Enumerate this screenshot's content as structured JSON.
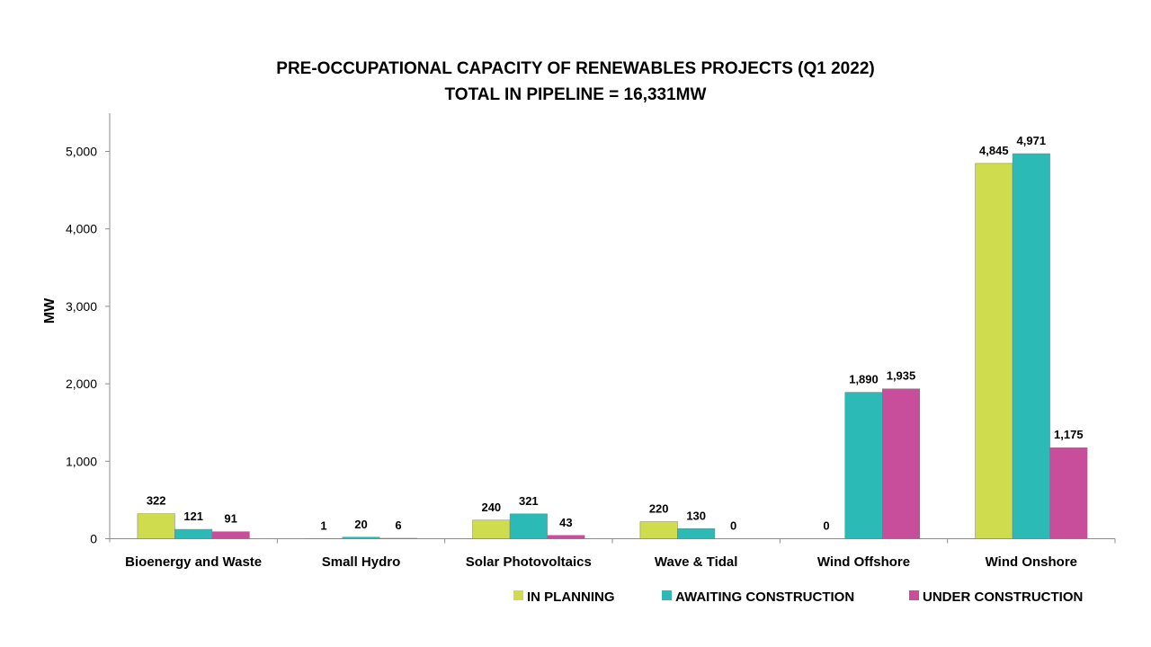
{
  "chart_data": {
    "type": "bar",
    "title": "PRE-OCCUPATIONAL CAPACITY OF RENEWABLES PROJECTS (Q1 2022)",
    "subtitle": "TOTAL IN PIPELINE = 16,331MW",
    "xlabel": "",
    "ylabel": "MW",
    "ylim": [
      0,
      5500
    ],
    "yticks": [
      0,
      1000,
      2000,
      3000,
      4000,
      5000
    ],
    "ytick_labels": [
      "0",
      "1,000",
      "2,000",
      "3,000",
      "4,000",
      "5,000"
    ],
    "categories": [
      "Bioenergy and Waste",
      "Small Hydro",
      "Solar Photovoltaics",
      "Wave & Tidal",
      "Wind Offshore",
      "Wind Onshore"
    ],
    "series": [
      {
        "name": "IN PLANNING",
        "color": "#cfdc4e",
        "values": [
          322,
          1,
          240,
          220,
          0,
          4845
        ],
        "labels": [
          "322",
          "1",
          "240",
          "220",
          "0",
          "4,845"
        ]
      },
      {
        "name": "AWAITING CONSTRUCTION",
        "color": "#2cbab6",
        "values": [
          121,
          20,
          321,
          130,
          1890,
          4971
        ],
        "labels": [
          "121",
          "20",
          "321",
          "130",
          "1,890",
          "4,971"
        ]
      },
      {
        "name": "UNDER CONSTRUCTION",
        "color": "#c84e9c",
        "values": [
          91,
          6,
          43,
          0,
          1935,
          1175
        ],
        "labels": [
          "91",
          "6",
          "43",
          "0",
          "1,935",
          "1,175"
        ]
      }
    ],
    "grid": false,
    "legend_position": "bottom-right"
  }
}
